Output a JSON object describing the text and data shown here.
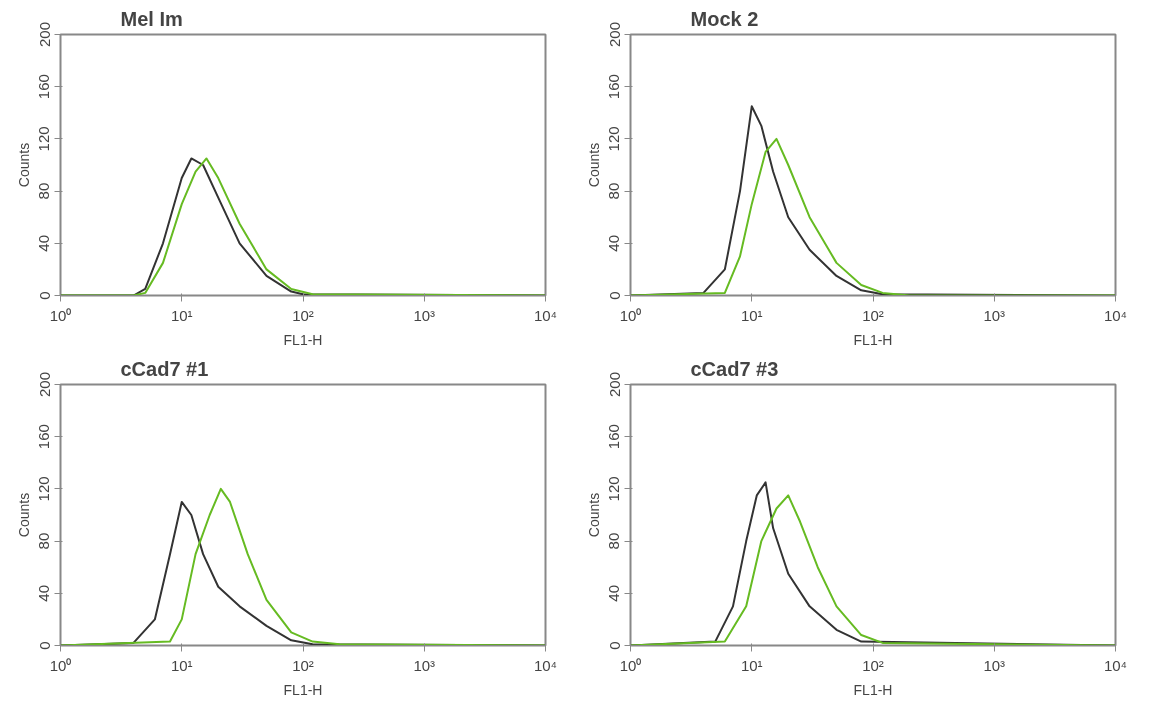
{
  "chart_data": [
    {
      "type": "line",
      "title": "Mel Im",
      "xlabel": "FL1-H",
      "ylabel": "Counts",
      "log": "x",
      "grid": false,
      "xlim": [
        1,
        10000
      ],
      "ylim": [
        0,
        200
      ],
      "xticks": [
        {
          "value": 1,
          "label": "10⁰"
        },
        {
          "value": 10,
          "label": "10¹"
        },
        {
          "value": 100,
          "label": "10²"
        },
        {
          "value": 1000,
          "label": "10³"
        },
        {
          "value": 10000,
          "label": "10⁴"
        }
      ],
      "yticks": [
        0,
        40,
        80,
        120,
        160,
        200
      ],
      "series": [
        {
          "color": "#333333",
          "x": [
            1,
            4,
            5,
            7,
            10,
            12,
            15,
            20,
            30,
            50,
            80,
            100,
            10000
          ],
          "values": [
            0,
            0,
            5,
            40,
            90,
            105,
            100,
            75,
            40,
            15,
            3,
            1,
            0
          ]
        },
        {
          "color": "#66bb22",
          "x": [
            1,
            4,
            5,
            7,
            10,
            13,
            16,
            20,
            30,
            50,
            80,
            120,
            10000
          ],
          "values": [
            0,
            0,
            2,
            25,
            70,
            95,
            105,
            90,
            55,
            20,
            5,
            1,
            0
          ]
        }
      ]
    },
    {
      "type": "line",
      "title": "Mock 2",
      "xlabel": "FL1-H",
      "ylabel": "Counts",
      "log": "x",
      "grid": false,
      "xlim": [
        1,
        10000
      ],
      "ylim": [
        0,
        200
      ],
      "xticks": [
        {
          "value": 1,
          "label": "10⁰"
        },
        {
          "value": 10,
          "label": "10¹"
        },
        {
          "value": 100,
          "label": "10²"
        },
        {
          "value": 1000,
          "label": "10³"
        },
        {
          "value": 10000,
          "label": "10⁴"
        }
      ],
      "yticks": [
        0,
        40,
        80,
        120,
        160,
        200
      ],
      "series": [
        {
          "color": "#333333",
          "x": [
            1,
            4,
            6,
            8,
            10,
            12,
            15,
            20,
            30,
            50,
            80,
            120,
            10000
          ],
          "values": [
            0,
            2,
            20,
            80,
            145,
            130,
            95,
            60,
            35,
            15,
            4,
            1,
            0
          ]
        },
        {
          "color": "#66bb22",
          "x": [
            1,
            6,
            8,
            10,
            13,
            16,
            20,
            30,
            50,
            80,
            120,
            200,
            10000
          ],
          "values": [
            0,
            2,
            30,
            70,
            110,
            120,
            100,
            60,
            25,
            8,
            2,
            0,
            0
          ]
        }
      ]
    },
    {
      "type": "line",
      "title": "cCad7 #1",
      "xlabel": "FL1-H",
      "ylabel": "Counts",
      "log": "x",
      "grid": false,
      "xlim": [
        1,
        10000
      ],
      "ylim": [
        0,
        200
      ],
      "xticks": [
        {
          "value": 1,
          "label": "10⁰"
        },
        {
          "value": 10,
          "label": "10¹"
        },
        {
          "value": 100,
          "label": "10²"
        },
        {
          "value": 1000,
          "label": "10³"
        },
        {
          "value": 10000,
          "label": "10⁴"
        }
      ],
      "yticks": [
        0,
        40,
        80,
        120,
        160,
        200
      ],
      "series": [
        {
          "color": "#333333",
          "x": [
            1,
            4,
            6,
            8,
            10,
            12,
            15,
            20,
            30,
            50,
            80,
            120,
            10000
          ],
          "values": [
            0,
            2,
            20,
            70,
            110,
            100,
            70,
            45,
            30,
            15,
            4,
            1,
            0
          ]
        },
        {
          "color": "#66bb22",
          "x": [
            1,
            8,
            10,
            13,
            17,
            21,
            25,
            35,
            50,
            80,
            120,
            200,
            10000
          ],
          "values": [
            0,
            3,
            20,
            70,
            100,
            120,
            110,
            70,
            35,
            10,
            3,
            1,
            0
          ]
        }
      ]
    },
    {
      "type": "line",
      "title": "cCad7 #3",
      "xlabel": "FL1-H",
      "ylabel": "Counts",
      "log": "x",
      "grid": false,
      "xlim": [
        1,
        10000
      ],
      "ylim": [
        0,
        200
      ],
      "xticks": [
        {
          "value": 1,
          "label": "10⁰"
        },
        {
          "value": 10,
          "label": "10¹"
        },
        {
          "value": 100,
          "label": "10²"
        },
        {
          "value": 1000,
          "label": "10³"
        },
        {
          "value": 10000,
          "label": "10⁴"
        }
      ],
      "yticks": [
        0,
        40,
        80,
        120,
        160,
        200
      ],
      "series": [
        {
          "color": "#333333",
          "x": [
            1,
            5,
            7,
            9,
            11,
            13,
            15,
            20,
            30,
            50,
            80,
            10000
          ],
          "values": [
            0,
            3,
            30,
            80,
            115,
            125,
            90,
            55,
            30,
            12,
            3,
            0
          ]
        },
        {
          "color": "#66bb22",
          "x": [
            1,
            6,
            9,
            12,
            16,
            20,
            25,
            35,
            50,
            80,
            120,
            10000
          ],
          "values": [
            0,
            3,
            30,
            80,
            105,
            115,
            95,
            60,
            30,
            8,
            2,
            0
          ]
        }
      ]
    }
  ]
}
